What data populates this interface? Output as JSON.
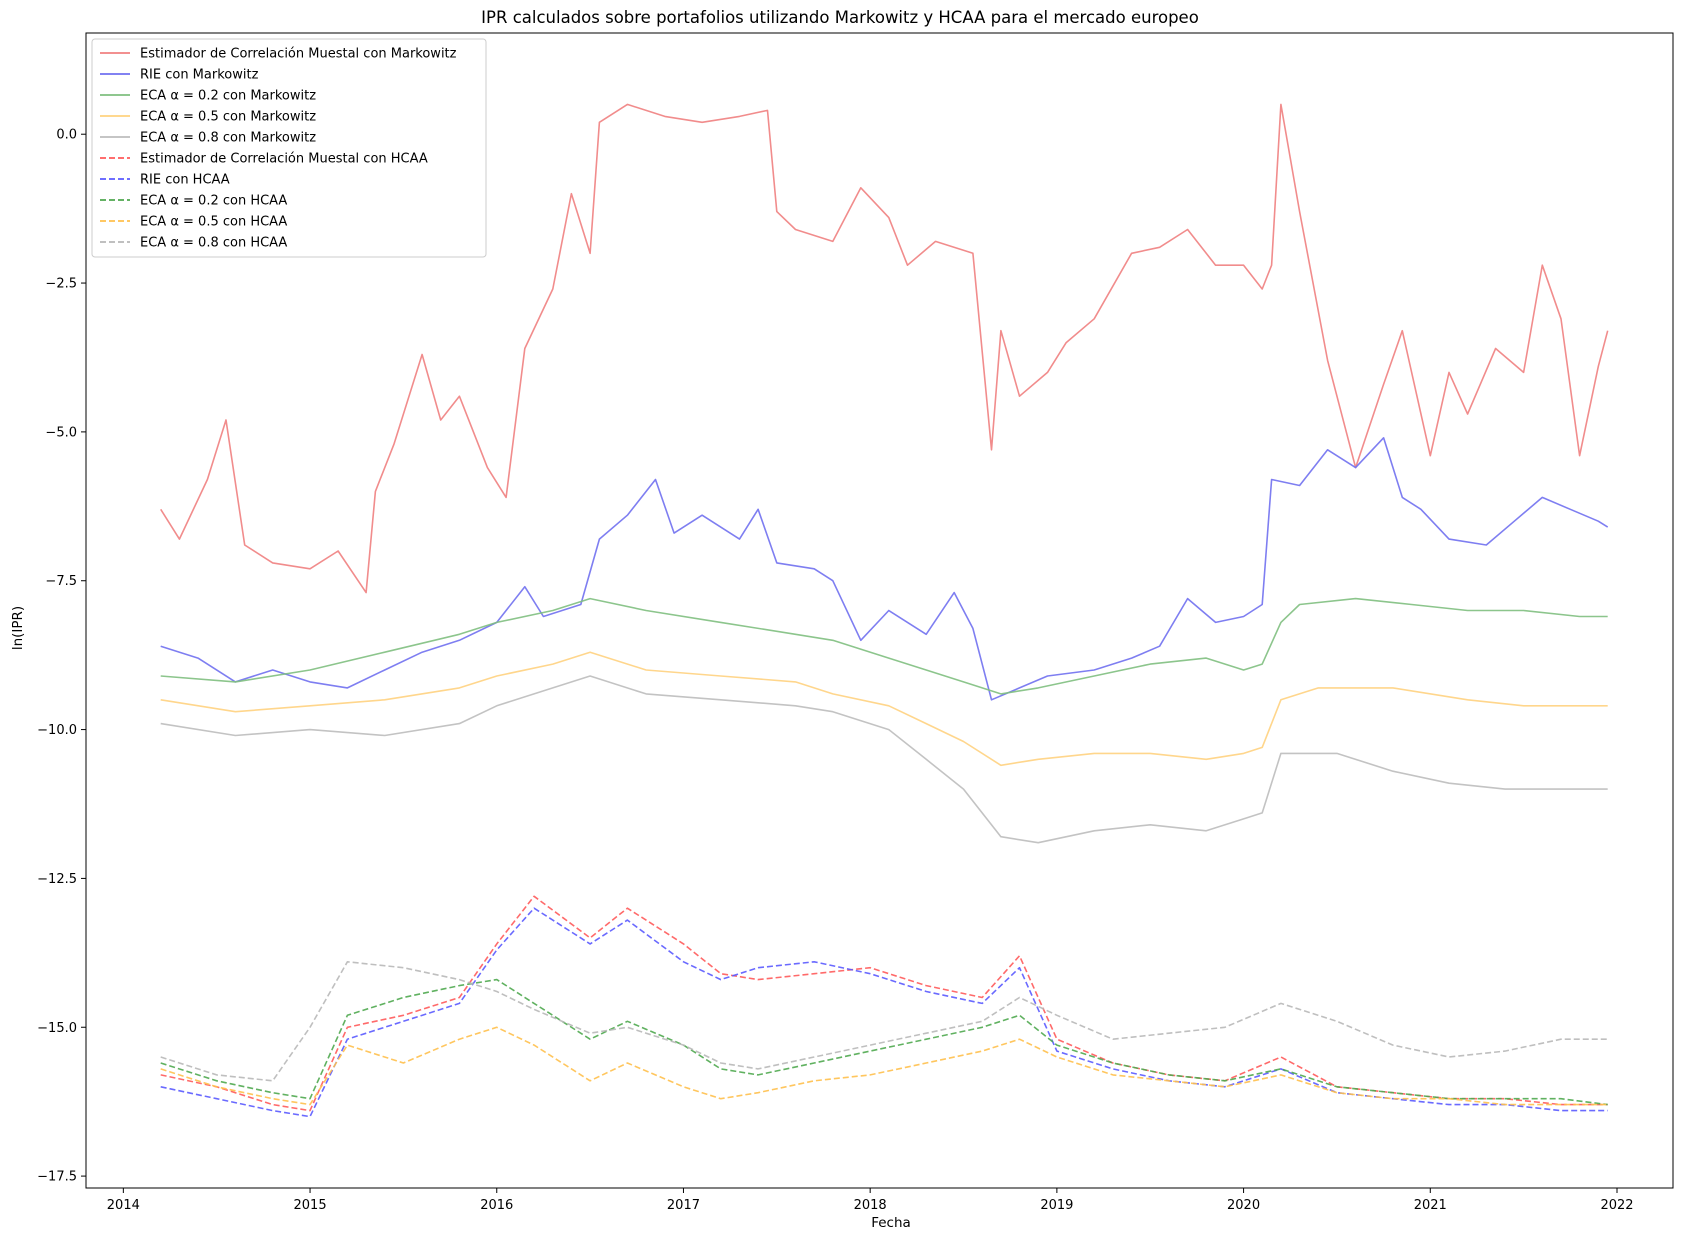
{
  "chart_data": {
    "type": "line",
    "title": "IPR calculados sobre portafolios utilizando Markowitz y HCAA para el mercado europeo",
    "xlabel": "Fecha",
    "ylabel": "ln(IPR)",
    "xlim": [
      2013.8,
      2022.3
    ],
    "ylim": [
      -17.7,
      1.7
    ],
    "xticks": [
      2014,
      2015,
      2016,
      2017,
      2018,
      2019,
      2020,
      2021,
      2022
    ],
    "xtick_labels": [
      "2014",
      "2015",
      "2016",
      "2017",
      "2018",
      "2019",
      "2020",
      "2021",
      "2022"
    ],
    "yticks": [
      0.0,
      -2.5,
      -5.0,
      -7.5,
      -10.0,
      -12.5,
      -15.0,
      -17.5
    ],
    "ytick_labels": [
      "0.0",
      "−2.5",
      "−5.0",
      "−7.5",
      "−10.0",
      "−12.5",
      "−15.0",
      "−17.5"
    ],
    "grid": false,
    "legend_position": "top-left",
    "series": [
      {
        "name": "Estimador de Correlación Muestal con Markowitz",
        "color": "#f08080",
        "style": "solid",
        "x": [
          2014.2,
          2014.3,
          2014.45,
          2014.55,
          2014.65,
          2014.8,
          2015.0,
          2015.15,
          2015.3,
          2015.35,
          2015.45,
          2015.6,
          2015.7,
          2015.8,
          2015.95,
          2016.05,
          2016.15,
          2016.3,
          2016.4,
          2016.5,
          2016.55,
          2016.7,
          2016.9,
          2017.1,
          2017.3,
          2017.45,
          2017.5,
          2017.6,
          2017.8,
          2017.95,
          2018.1,
          2018.2,
          2018.35,
          2018.55,
          2018.65,
          2018.7,
          2018.8,
          2018.95,
          2019.05,
          2019.2,
          2019.4,
          2019.55,
          2019.7,
          2019.85,
          2020.0,
          2020.1,
          2020.15,
          2020.2,
          2020.3,
          2020.45,
          2020.6,
          2020.75,
          2020.85,
          2021.0,
          2021.1,
          2021.2,
          2021.35,
          2021.5,
          2021.6,
          2021.7,
          2021.8,
          2021.9,
          2021.95
        ],
        "y": [
          -6.3,
          -6.8,
          -5.8,
          -4.8,
          -6.9,
          -7.2,
          -7.3,
          -7.0,
          -7.7,
          -6.0,
          -5.2,
          -3.7,
          -4.8,
          -4.4,
          -5.6,
          -6.1,
          -3.6,
          -2.6,
          -1.0,
          -2.0,
          0.2,
          0.5,
          0.3,
          0.2,
          0.3,
          0.4,
          -1.3,
          -1.6,
          -1.8,
          -0.9,
          -1.4,
          -2.2,
          -1.8,
          -2.0,
          -5.3,
          -3.3,
          -4.4,
          -4.0,
          -3.5,
          -3.1,
          -2.0,
          -1.9,
          -1.6,
          -2.2,
          -2.2,
          -2.6,
          -2.2,
          0.5,
          -1.3,
          -3.8,
          -5.6,
          -4.2,
          -3.3,
          -5.4,
          -4.0,
          -4.7,
          -3.6,
          -4.0,
          -2.2,
          -3.1,
          -5.4,
          -3.9,
          -3.3
        ]
      },
      {
        "name": "RIE con Markowitz",
        "color": "#7070f0",
        "style": "solid",
        "x": [
          2014.2,
          2014.4,
          2014.6,
          2014.8,
          2015.0,
          2015.2,
          2015.4,
          2015.6,
          2015.8,
          2016.0,
          2016.15,
          2016.25,
          2016.45,
          2016.55,
          2016.7,
          2016.85,
          2016.95,
          2017.1,
          2017.3,
          2017.4,
          2017.5,
          2017.7,
          2017.8,
          2017.95,
          2018.1,
          2018.3,
          2018.45,
          2018.55,
          2018.65,
          2018.8,
          2018.95,
          2019.2,
          2019.4,
          2019.55,
          2019.7,
          2019.85,
          2020.0,
          2020.1,
          2020.15,
          2020.3,
          2020.45,
          2020.6,
          2020.75,
          2020.85,
          2020.95,
          2021.1,
          2021.3,
          2021.45,
          2021.6,
          2021.75,
          2021.9,
          2021.95
        ],
        "y": [
          -8.6,
          -8.8,
          -9.2,
          -9.0,
          -9.2,
          -9.3,
          -9.0,
          -8.7,
          -8.5,
          -8.2,
          -7.6,
          -8.1,
          -7.9,
          -6.8,
          -6.4,
          -5.8,
          -6.7,
          -6.4,
          -6.8,
          -6.3,
          -7.2,
          -7.3,
          -7.5,
          -8.5,
          -8.0,
          -8.4,
          -7.7,
          -8.3,
          -9.5,
          -9.3,
          -9.1,
          -9.0,
          -8.8,
          -8.6,
          -7.8,
          -8.2,
          -8.1,
          -7.9,
          -5.8,
          -5.9,
          -5.3,
          -5.6,
          -5.1,
          -6.1,
          -6.3,
          -6.8,
          -6.9,
          -6.5,
          -6.1,
          -6.3,
          -6.5,
          -6.6
        ]
      },
      {
        "name": "ECA α = 0.2 con Markowitz",
        "color": "#7fbf7f",
        "style": "solid",
        "x": [
          2014.2,
          2014.6,
          2015.0,
          2015.4,
          2015.8,
          2016.0,
          2016.3,
          2016.5,
          2016.8,
          2017.2,
          2017.6,
          2017.8,
          2018.1,
          2018.3,
          2018.5,
          2018.7,
          2018.9,
          2019.2,
          2019.5,
          2019.8,
          2020.0,
          2020.1,
          2020.2,
          2020.3,
          2020.6,
          2020.9,
          2021.2,
          2021.5,
          2021.8,
          2021.95
        ],
        "y": [
          -9.1,
          -9.2,
          -9.0,
          -8.7,
          -8.4,
          -8.2,
          -8.0,
          -7.8,
          -8.0,
          -8.2,
          -8.4,
          -8.5,
          -8.8,
          -9.0,
          -9.2,
          -9.4,
          -9.3,
          -9.1,
          -8.9,
          -8.8,
          -9.0,
          -8.9,
          -8.2,
          -7.9,
          -7.8,
          -7.9,
          -8.0,
          -8.0,
          -8.1,
          -8.1
        ]
      },
      {
        "name": "ECA α = 0.5 con Markowitz",
        "color": "#ffd27f",
        "style": "solid",
        "x": [
          2014.2,
          2014.6,
          2015.0,
          2015.4,
          2015.8,
          2016.0,
          2016.3,
          2016.5,
          2016.8,
          2017.2,
          2017.6,
          2017.8,
          2018.1,
          2018.3,
          2018.5,
          2018.7,
          2018.9,
          2019.2,
          2019.5,
          2019.8,
          2020.0,
          2020.1,
          2020.2,
          2020.4,
          2020.8,
          2021.2,
          2021.5,
          2021.8,
          2021.95
        ],
        "y": [
          -9.5,
          -9.7,
          -9.6,
          -9.5,
          -9.3,
          -9.1,
          -8.9,
          -8.7,
          -9.0,
          -9.1,
          -9.2,
          -9.4,
          -9.6,
          -9.9,
          -10.2,
          -10.6,
          -10.5,
          -10.4,
          -10.4,
          -10.5,
          -10.4,
          -10.3,
          -9.5,
          -9.3,
          -9.3,
          -9.5,
          -9.6,
          -9.6,
          -9.6
        ]
      },
      {
        "name": "ECA α = 0.8 con Markowitz",
        "color": "#bdbdbd",
        "style": "solid",
        "x": [
          2014.2,
          2014.6,
          2015.0,
          2015.4,
          2015.8,
          2016.0,
          2016.3,
          2016.5,
          2016.8,
          2017.2,
          2017.6,
          2017.8,
          2018.1,
          2018.3,
          2018.5,
          2018.7,
          2018.9,
          2019.2,
          2019.5,
          2019.8,
          2020.0,
          2020.1,
          2020.2,
          2020.5,
          2020.8,
          2021.1,
          2021.4,
          2021.7,
          2021.95
        ],
        "y": [
          -9.9,
          -10.1,
          -10.0,
          -10.1,
          -9.9,
          -9.6,
          -9.3,
          -9.1,
          -9.4,
          -9.5,
          -9.6,
          -9.7,
          -10.0,
          -10.5,
          -11.0,
          -11.8,
          -11.9,
          -11.7,
          -11.6,
          -11.7,
          -11.5,
          -11.4,
          -10.4,
          -10.4,
          -10.7,
          -10.9,
          -11.0,
          -11.0,
          -11.0
        ]
      },
      {
        "name": "Estimador de Correlación Muestal con HCAA",
        "color": "#ff5a5a",
        "style": "dashed",
        "x": [
          2014.2,
          2014.5,
          2014.8,
          2015.0,
          2015.2,
          2015.5,
          2015.8,
          2016.0,
          2016.2,
          2016.5,
          2016.7,
          2017.0,
          2017.2,
          2017.4,
          2017.7,
          2018.0,
          2018.3,
          2018.6,
          2018.8,
          2019.0,
          2019.3,
          2019.6,
          2019.9,
          2020.2,
          2020.5,
          2020.8,
          2021.1,
          2021.4,
          2021.7,
          2021.95
        ],
        "y": [
          -15.8,
          -16.0,
          -16.3,
          -16.4,
          -15.0,
          -14.8,
          -14.5,
          -13.6,
          -12.8,
          -13.5,
          -13.0,
          -13.6,
          -14.1,
          -14.2,
          -14.1,
          -14.0,
          -14.3,
          -14.5,
          -13.8,
          -15.2,
          -15.6,
          -15.8,
          -15.9,
          -15.5,
          -16.0,
          -16.1,
          -16.2,
          -16.2,
          -16.3,
          -16.3
        ]
      },
      {
        "name": "RIE con HCAA",
        "color": "#5a5aff",
        "style": "dashed",
        "x": [
          2014.2,
          2014.5,
          2014.8,
          2015.0,
          2015.2,
          2015.5,
          2015.8,
          2016.0,
          2016.2,
          2016.5,
          2016.7,
          2017.0,
          2017.2,
          2017.4,
          2017.7,
          2018.0,
          2018.3,
          2018.6,
          2018.8,
          2019.0,
          2019.3,
          2019.6,
          2019.9,
          2020.2,
          2020.5,
          2020.8,
          2021.1,
          2021.4,
          2021.7,
          2021.95
        ],
        "y": [
          -16.0,
          -16.2,
          -16.4,
          -16.5,
          -15.2,
          -14.9,
          -14.6,
          -13.7,
          -13.0,
          -13.6,
          -13.2,
          -13.9,
          -14.2,
          -14.0,
          -13.9,
          -14.1,
          -14.4,
          -14.6,
          -14.0,
          -15.4,
          -15.7,
          -15.9,
          -16.0,
          -15.7,
          -16.1,
          -16.2,
          -16.3,
          -16.3,
          -16.4,
          -16.4
        ]
      },
      {
        "name": "ECA α = 0.2 con HCAA",
        "color": "#4fa84f",
        "style": "dashed",
        "x": [
          2014.2,
          2014.5,
          2014.8,
          2015.0,
          2015.2,
          2015.5,
          2015.8,
          2016.0,
          2016.2,
          2016.5,
          2016.7,
          2017.0,
          2017.2,
          2017.4,
          2017.7,
          2018.0,
          2018.3,
          2018.6,
          2018.8,
          2019.0,
          2019.3,
          2019.6,
          2019.9,
          2020.2,
          2020.5,
          2020.8,
          2021.1,
          2021.4,
          2021.7,
          2021.95
        ],
        "y": [
          -15.6,
          -15.9,
          -16.1,
          -16.2,
          -14.8,
          -14.5,
          -14.3,
          -14.2,
          -14.6,
          -15.2,
          -14.9,
          -15.3,
          -15.7,
          -15.8,
          -15.6,
          -15.4,
          -15.2,
          -15.0,
          -14.8,
          -15.3,
          -15.6,
          -15.8,
          -15.9,
          -15.7,
          -16.0,
          -16.1,
          -16.2,
          -16.2,
          -16.2,
          -16.3
        ]
      },
      {
        "name": "ECA α = 0.5 con HCAA",
        "color": "#ffc04d",
        "style": "dashed",
        "x": [
          2014.2,
          2014.5,
          2014.8,
          2015.0,
          2015.2,
          2015.5,
          2015.8,
          2016.0,
          2016.2,
          2016.5,
          2016.7,
          2017.0,
          2017.2,
          2017.4,
          2017.7,
          2018.0,
          2018.3,
          2018.6,
          2018.8,
          2019.0,
          2019.3,
          2019.6,
          2019.9,
          2020.2,
          2020.5,
          2020.8,
          2021.1,
          2021.4,
          2021.7,
          2021.95
        ],
        "y": [
          -15.7,
          -16.0,
          -16.2,
          -16.3,
          -15.3,
          -15.6,
          -15.2,
          -15.0,
          -15.3,
          -15.9,
          -15.6,
          -16.0,
          -16.2,
          -16.1,
          -15.9,
          -15.8,
          -15.6,
          -15.4,
          -15.2,
          -15.5,
          -15.8,
          -15.9,
          -16.0,
          -15.8,
          -16.1,
          -16.2,
          -16.2,
          -16.3,
          -16.3,
          -16.3
        ]
      },
      {
        "name": "ECA α = 0.8 con HCAA",
        "color": "#b8b8b8",
        "style": "dashed",
        "x": [
          2014.2,
          2014.5,
          2014.8,
          2015.0,
          2015.2,
          2015.5,
          2015.8,
          2016.0,
          2016.2,
          2016.5,
          2016.7,
          2017.0,
          2017.2,
          2017.4,
          2017.7,
          2018.0,
          2018.3,
          2018.6,
          2018.8,
          2019.0,
          2019.3,
          2019.6,
          2019.9,
          2020.2,
          2020.5,
          2020.8,
          2021.1,
          2021.4,
          2021.7,
          2021.95
        ],
        "y": [
          -15.5,
          -15.8,
          -15.9,
          -15.0,
          -13.9,
          -14.0,
          -14.2,
          -14.4,
          -14.7,
          -15.1,
          -15.0,
          -15.3,
          -15.6,
          -15.7,
          -15.5,
          -15.3,
          -15.1,
          -14.9,
          -14.5,
          -14.8,
          -15.2,
          -15.1,
          -15.0,
          -14.6,
          -14.9,
          -15.3,
          -15.5,
          -15.4,
          -15.2,
          -15.2
        ]
      }
    ]
  }
}
